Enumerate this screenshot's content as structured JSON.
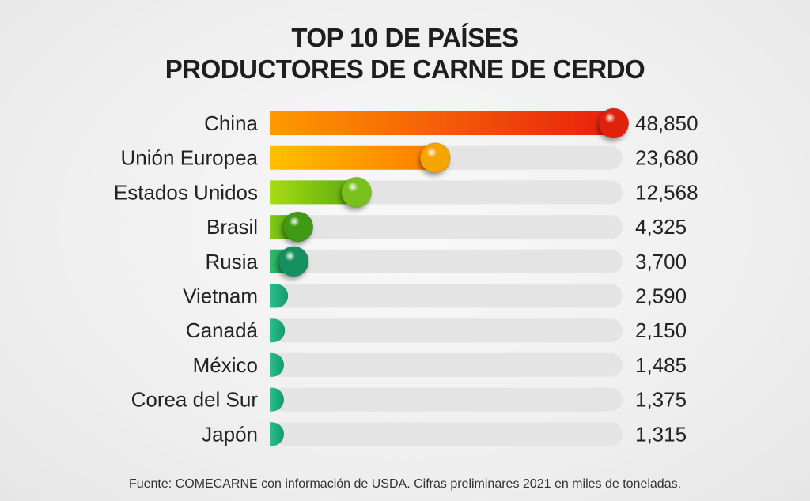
{
  "title_line1": "TOP 10 DE PAÍSES",
  "title_line2": "PRODUCTORES DE CARNE DE CERDO",
  "footnote": "Fuente: COMECARNE con información de USDA. Cifras preliminares 2021 en miles de toneladas.",
  "chart_data": {
    "type": "bar",
    "orientation": "horizontal",
    "categories": [
      "China",
      "Unión Europea",
      "Estados Unidos",
      "Brasil",
      "Rusia",
      "Vietnam",
      "Canadá",
      "México",
      "Corea del Sur",
      "Japón"
    ],
    "values": [
      48850,
      23680,
      12568,
      4325,
      3700,
      2590,
      2150,
      1485,
      1375,
      1315
    ],
    "value_labels": [
      "48,850",
      "23,680",
      "12,568",
      "4,325",
      "3,700",
      "2,590",
      "2,150",
      "1,485",
      "1,375",
      "1,315"
    ],
    "xlim": [
      0,
      50000
    ],
    "grid": false,
    "legend": "none",
    "bar_colors": [
      [
        "#ff9a00",
        "#e81e0e"
      ],
      [
        "#ffc000",
        "#ff7a00"
      ],
      [
        "#a6dc14",
        "#5aa80f"
      ],
      [
        "#86cc16",
        "#3f9a12"
      ],
      [
        "#2fbf6a",
        "#118a54"
      ],
      [
        "#2cc08a",
        "#129a70"
      ],
      [
        "#2cc08a",
        "#129a70"
      ],
      [
        "#2cc08a",
        "#129a70"
      ],
      [
        "#2cc08a",
        "#129a70"
      ],
      [
        "#2cc08a",
        "#129a70"
      ]
    ],
    "ball_colors": [
      "#e0230f",
      "#f5a400",
      "#78c01a",
      "#3f9a12",
      "#149060"
    ],
    "track_color": "#e4e4e4"
  }
}
